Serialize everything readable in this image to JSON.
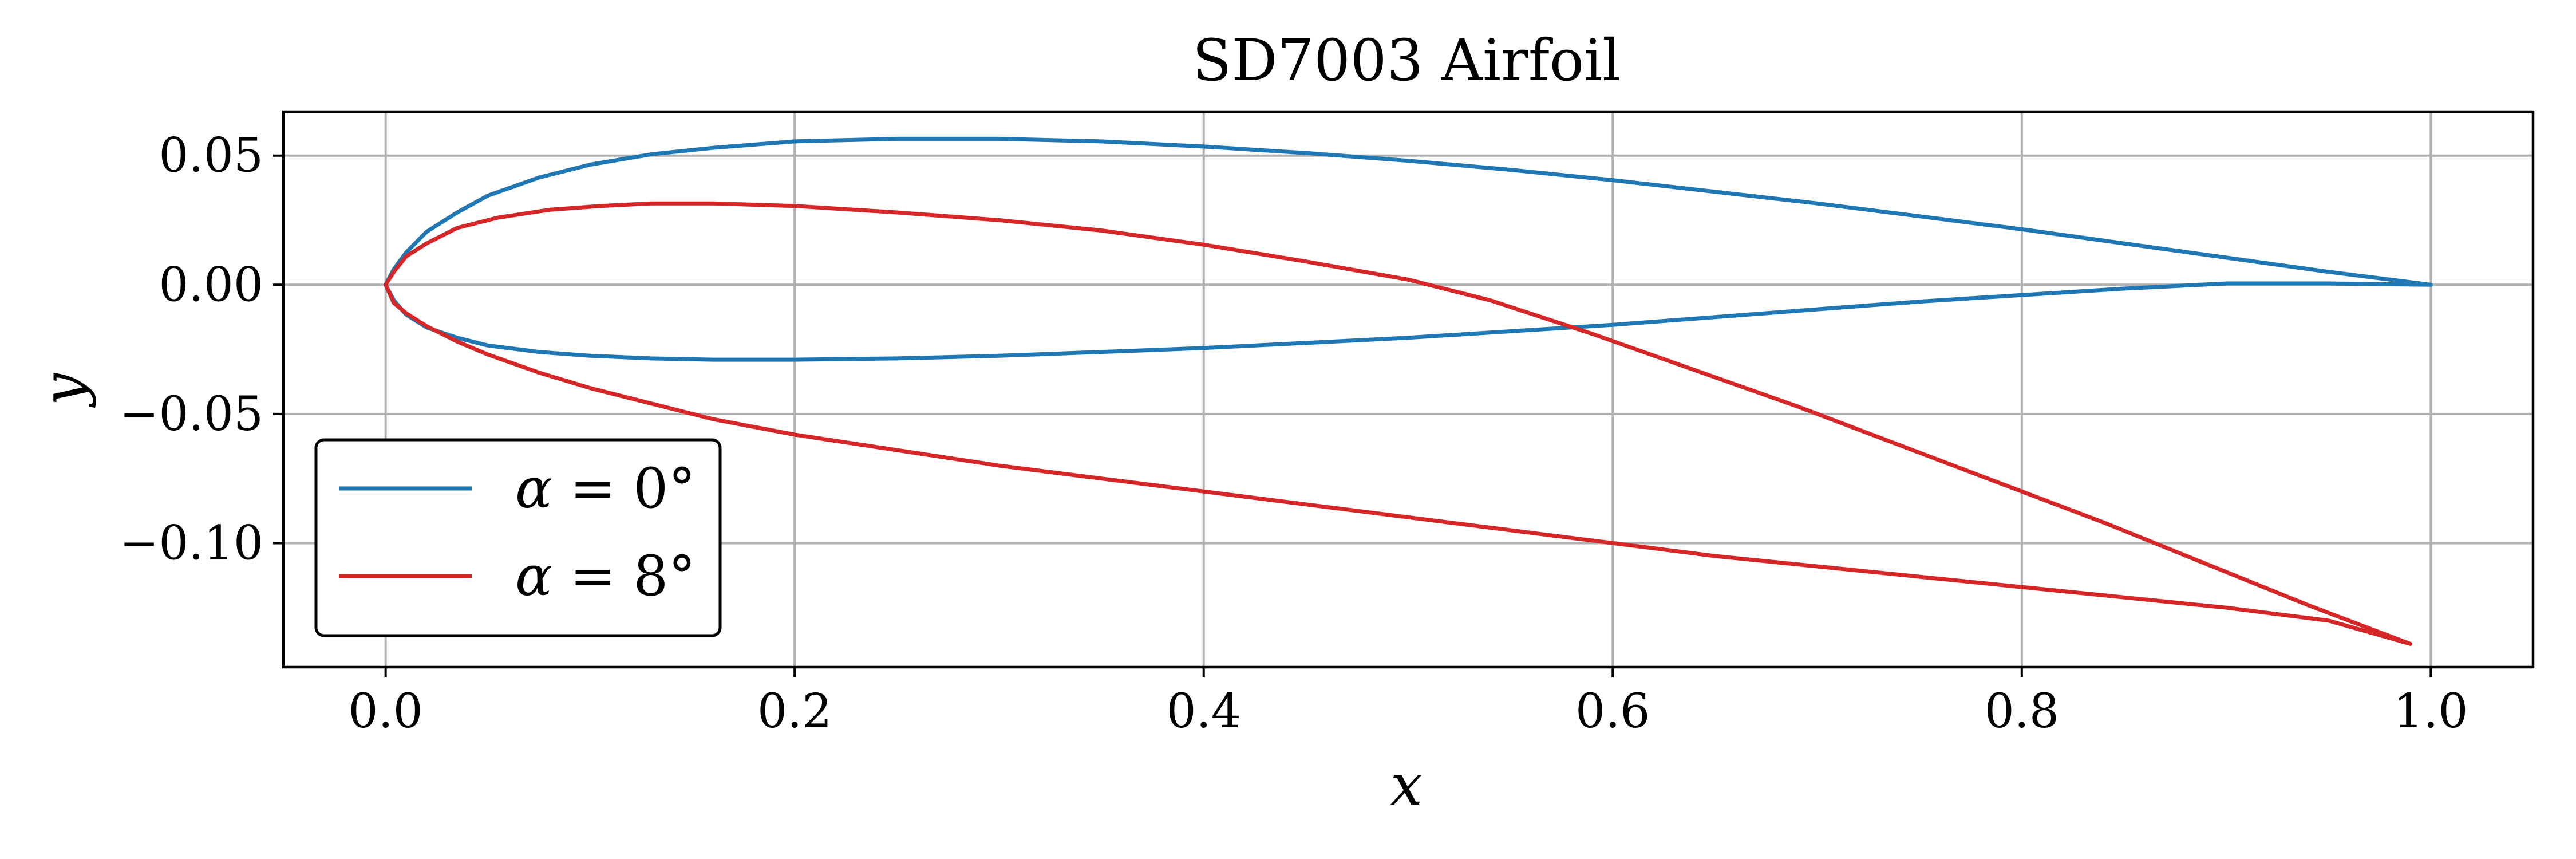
{
  "chart_data": {
    "type": "line",
    "title": "SD7003 Airfoil",
    "xlabel": "x",
    "ylabel": "y",
    "xlim": [
      -0.05,
      1.05
    ],
    "ylim": [
      -0.148,
      0.067
    ],
    "xticks": [
      0.0,
      0.2,
      0.4,
      0.6,
      0.8,
      1.0
    ],
    "xtick_labels": [
      "0.0",
      "0.2",
      "0.4",
      "0.6",
      "0.8",
      "1.0"
    ],
    "yticks": [
      0.05,
      0.0,
      -0.05,
      -0.1
    ],
    "ytick_labels": [
      "0.05",
      "0.00",
      "−0.05",
      "−0.10"
    ],
    "grid": true,
    "legend_position": "lower-left",
    "series": [
      {
        "name": "α = 0°",
        "label_parts": [
          "α",
          " = 0°"
        ],
        "color": "#1f77b4",
        "x": [
          1.0,
          0.95,
          0.9,
          0.85,
          0.8,
          0.75,
          0.7,
          0.65,
          0.6,
          0.55,
          0.5,
          0.45,
          0.4,
          0.35,
          0.3,
          0.25,
          0.2,
          0.16,
          0.13,
          0.1,
          0.075,
          0.05,
          0.035,
          0.02,
          0.01,
          0.004,
          0.0,
          0.004,
          0.01,
          0.02,
          0.035,
          0.05,
          0.075,
          0.1,
          0.13,
          0.16,
          0.2,
          0.25,
          0.3,
          0.35,
          0.4,
          0.45,
          0.5,
          0.55,
          0.6,
          0.65,
          0.7,
          0.75,
          0.8,
          0.85,
          0.9,
          0.95,
          1.0
        ],
        "y": [
          0.0,
          0.005,
          0.0105,
          0.016,
          0.0215,
          0.0265,
          0.0315,
          0.036,
          0.0405,
          0.0445,
          0.048,
          0.051,
          0.0535,
          0.0555,
          0.0565,
          0.0565,
          0.0555,
          0.053,
          0.0505,
          0.0465,
          0.0415,
          0.0345,
          0.028,
          0.0205,
          0.0125,
          0.006,
          0.0,
          -0.006,
          -0.0115,
          -0.0165,
          -0.0205,
          -0.0235,
          -0.026,
          -0.0275,
          -0.0285,
          -0.029,
          -0.029,
          -0.0285,
          -0.0275,
          -0.026,
          -0.0245,
          -0.0225,
          -0.0205,
          -0.018,
          -0.0155,
          -0.0125,
          -0.0095,
          -0.0065,
          -0.004,
          -0.0015,
          0.0005,
          0.0005,
          0.0
        ]
      },
      {
        "name": "α = 8°",
        "label_parts": [
          "α",
          " = 8°"
        ],
        "color": "#d62728",
        "x": [
          0.99,
          0.94,
          0.89,
          0.84,
          0.79,
          0.74,
          0.69,
          0.64,
          0.59,
          0.54,
          0.5,
          0.45,
          0.4,
          0.35,
          0.3,
          0.25,
          0.2,
          0.16,
          0.13,
          0.105,
          0.08,
          0.055,
          0.035,
          0.02,
          0.01,
          0.004,
          0.0,
          0.004,
          0.01,
          0.02,
          0.035,
          0.05,
          0.075,
          0.1,
          0.13,
          0.16,
          0.2,
          0.25,
          0.3,
          0.35,
          0.4,
          0.45,
          0.5,
          0.55,
          0.6,
          0.65,
          0.7,
          0.75,
          0.8,
          0.85,
          0.9,
          0.95,
          0.99
        ],
        "y": [
          -0.139,
          -0.124,
          -0.108,
          -0.092,
          -0.077,
          -0.062,
          -0.047,
          -0.033,
          -0.019,
          -0.006,
          0.002,
          0.009,
          0.0155,
          0.021,
          0.025,
          0.028,
          0.0305,
          0.0315,
          0.0315,
          0.0305,
          0.029,
          0.026,
          0.022,
          0.016,
          0.011,
          0.005,
          0.0,
          -0.007,
          -0.011,
          -0.016,
          -0.022,
          -0.027,
          -0.034,
          -0.04,
          -0.046,
          -0.052,
          -0.058,
          -0.064,
          -0.07,
          -0.075,
          -0.08,
          -0.085,
          -0.09,
          -0.095,
          -0.1,
          -0.105,
          -0.109,
          -0.113,
          -0.117,
          -0.121,
          -0.125,
          -0.13,
          -0.139
        ]
      }
    ]
  }
}
